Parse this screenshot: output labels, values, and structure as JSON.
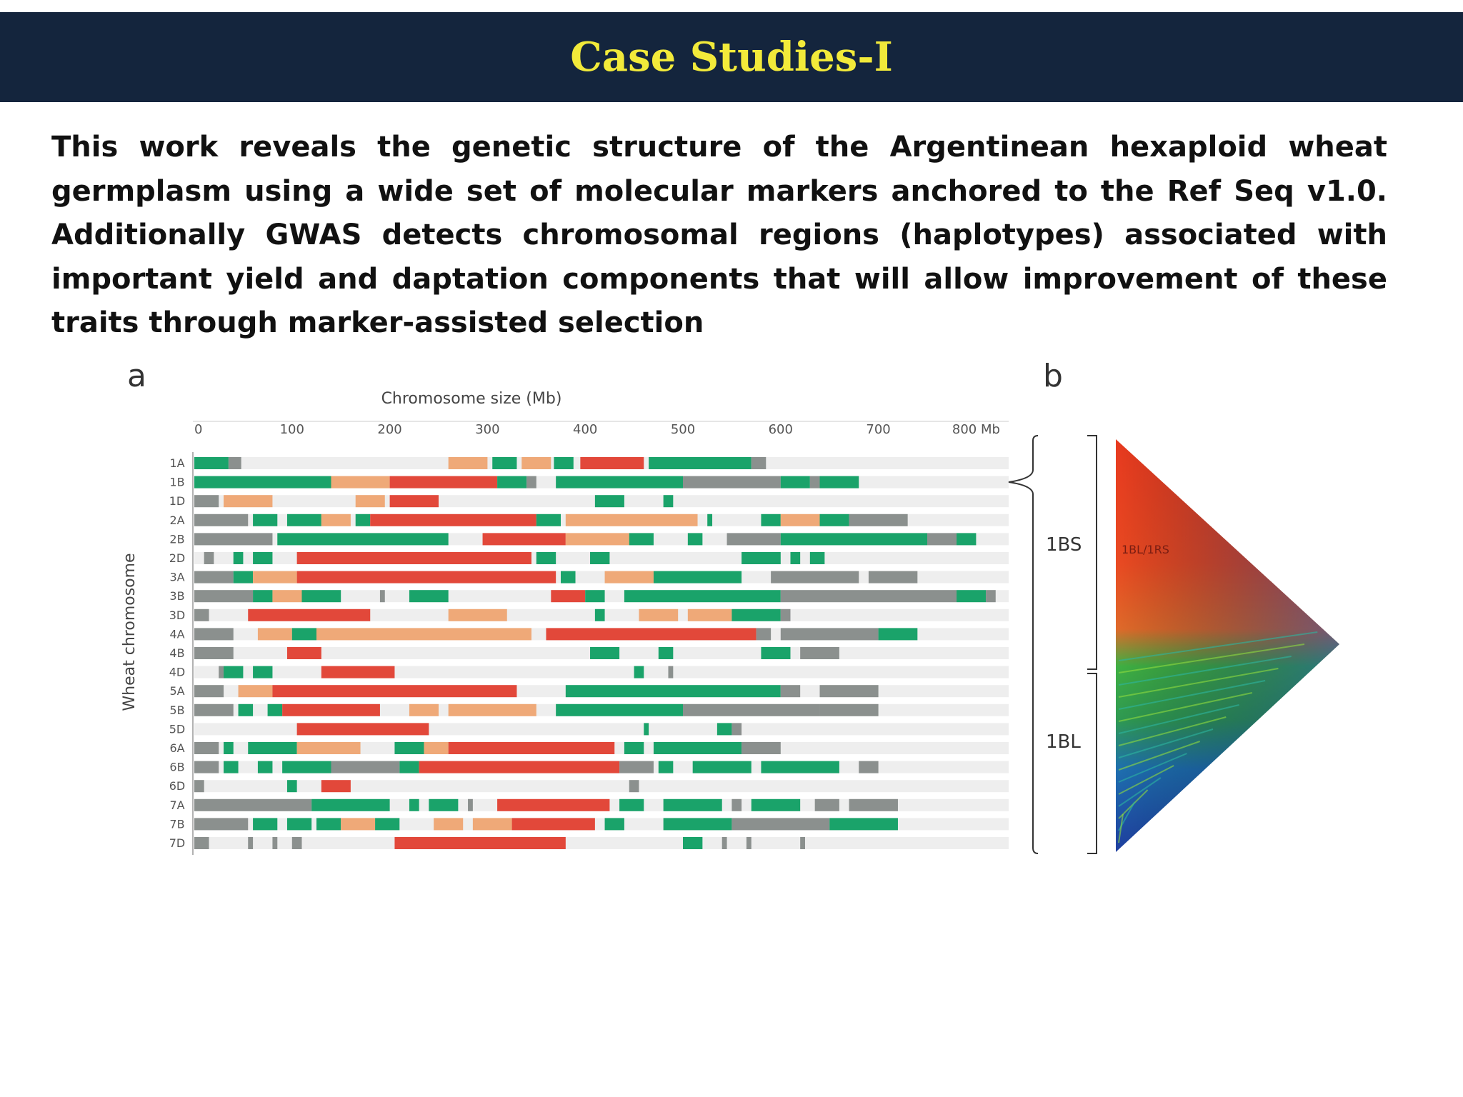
{
  "slide": {
    "title": "Case Studies-I",
    "body": "This work reveals the genetic structure of the Argentinean hexaploid wheat germplasm using a wide set of molecular markers anchored to the Ref Seq v1.0. Additionally GWAS detects chromosomal regions (haplotypes) associated with important yield and daptation components that will allow improvement of these traits through marker-assisted selection"
  },
  "figure": {
    "panel_a_label": "a",
    "panel_b_label": "b",
    "colors": {
      "green": "#1aa36a",
      "gray": "#8b908e",
      "orange": "#efa978",
      "red": "#e2483a",
      "track": "#eeeeee"
    },
    "panel_a": {
      "xlabel": "Chromosome size (Mb)",
      "ylabel": "Wheat chromosome",
      "ticks": [
        "0",
        "100",
        "200",
        "300",
        "400",
        "500",
        "600",
        "700",
        "800 Mb"
      ],
      "rows": [
        {
          "chr": "1A",
          "segs": [
            [
              0,
              35,
              "g"
            ],
            [
              35,
              48,
              "x"
            ],
            [
              260,
              300,
              "o"
            ],
            [
              305,
              330,
              "g"
            ],
            [
              335,
              365,
              "o"
            ],
            [
              368,
              388,
              "g"
            ],
            [
              395,
              460,
              "r"
            ],
            [
              465,
              570,
              "g"
            ],
            [
              570,
              585,
              "x"
            ]
          ]
        },
        {
          "chr": "1B",
          "segs": [
            [
              0,
              140,
              "g"
            ],
            [
              140,
              200,
              "o"
            ],
            [
              200,
              310,
              "r"
            ],
            [
              310,
              340,
              "g"
            ],
            [
              340,
              350,
              "x"
            ],
            [
              370,
              500,
              "g"
            ],
            [
              500,
              600,
              "x"
            ],
            [
              600,
              630,
              "g"
            ],
            [
              630,
              640,
              "x"
            ],
            [
              640,
              680,
              "g"
            ]
          ]
        },
        {
          "chr": "1D",
          "segs": [
            [
              0,
              25,
              "x"
            ],
            [
              30,
              80,
              "o"
            ],
            [
              165,
              195,
              "o"
            ],
            [
              200,
              250,
              "r"
            ],
            [
              410,
              440,
              "g"
            ],
            [
              480,
              490,
              "g"
            ]
          ]
        },
        {
          "chr": "2A",
          "segs": [
            [
              0,
              55,
              "x"
            ],
            [
              60,
              85,
              "g"
            ],
            [
              95,
              130,
              "g"
            ],
            [
              130,
              160,
              "o"
            ],
            [
              165,
              180,
              "g"
            ],
            [
              180,
              350,
              "r"
            ],
            [
              350,
              375,
              "g"
            ],
            [
              380,
              515,
              "o"
            ],
            [
              525,
              530,
              "g"
            ],
            [
              580,
              600,
              "g"
            ],
            [
              600,
              640,
              "o"
            ],
            [
              640,
              670,
              "g"
            ],
            [
              670,
              730,
              "x"
            ]
          ]
        },
        {
          "chr": "2B",
          "segs": [
            [
              0,
              80,
              "x"
            ],
            [
              85,
              260,
              "g"
            ],
            [
              295,
              380,
              "r"
            ],
            [
              380,
              445,
              "o"
            ],
            [
              445,
              470,
              "g"
            ],
            [
              505,
              520,
              "g"
            ],
            [
              545,
              600,
              "x"
            ],
            [
              600,
              750,
              "g"
            ],
            [
              750,
              780,
              "x"
            ],
            [
              780,
              800,
              "g"
            ]
          ]
        },
        {
          "chr": "2D",
          "segs": [
            [
              10,
              20,
              "x"
            ],
            [
              40,
              50,
              "g"
            ],
            [
              60,
              80,
              "g"
            ],
            [
              105,
              345,
              "r"
            ],
            [
              350,
              370,
              "g"
            ],
            [
              405,
              425,
              "g"
            ],
            [
              560,
              600,
              "g"
            ],
            [
              610,
              620,
              "g"
            ],
            [
              630,
              645,
              "g"
            ]
          ]
        },
        {
          "chr": "3A",
          "segs": [
            [
              0,
              40,
              "x"
            ],
            [
              40,
              60,
              "g"
            ],
            [
              60,
              105,
              "o"
            ],
            [
              105,
              370,
              "r"
            ],
            [
              375,
              390,
              "g"
            ],
            [
              420,
              470,
              "o"
            ],
            [
              470,
              560,
              "g"
            ],
            [
              590,
              680,
              "x"
            ],
            [
              690,
              740,
              "x"
            ]
          ]
        },
        {
          "chr": "3B",
          "segs": [
            [
              0,
              60,
              "x"
            ],
            [
              60,
              80,
              "g"
            ],
            [
              80,
              110,
              "o"
            ],
            [
              110,
              150,
              "g"
            ],
            [
              190,
              195,
              "x"
            ],
            [
              220,
              260,
              "g"
            ],
            [
              365,
              400,
              "r"
            ],
            [
              400,
              420,
              "g"
            ],
            [
              440,
              600,
              "g"
            ],
            [
              600,
              780,
              "x"
            ],
            [
              780,
              810,
              "g"
            ],
            [
              810,
              820,
              "x"
            ]
          ]
        },
        {
          "chr": "3D",
          "segs": [
            [
              0,
              15,
              "x"
            ],
            [
              55,
              180,
              "r"
            ],
            [
              260,
              320,
              "o"
            ],
            [
              410,
              420,
              "g"
            ],
            [
              455,
              495,
              "o"
            ],
            [
              505,
              550,
              "o"
            ],
            [
              550,
              600,
              "g"
            ],
            [
              600,
              610,
              "x"
            ]
          ]
        },
        {
          "chr": "4A",
          "segs": [
            [
              0,
              40,
              "x"
            ],
            [
              65,
              100,
              "o"
            ],
            [
              100,
              125,
              "g"
            ],
            [
              125,
              345,
              "o"
            ],
            [
              360,
              575,
              "r"
            ],
            [
              575,
              590,
              "x"
            ],
            [
              600,
              700,
              "x"
            ],
            [
              700,
              740,
              "g"
            ]
          ]
        },
        {
          "chr": "4B",
          "segs": [
            [
              0,
              40,
              "x"
            ],
            [
              95,
              130,
              "r"
            ],
            [
              405,
              435,
              "g"
            ],
            [
              475,
              490,
              "g"
            ],
            [
              580,
              610,
              "g"
            ],
            [
              620,
              660,
              "x"
            ]
          ]
        },
        {
          "chr": "4D",
          "segs": [
            [
              25,
              30,
              "x"
            ],
            [
              30,
              50,
              "g"
            ],
            [
              60,
              80,
              "g"
            ],
            [
              130,
              205,
              "r"
            ],
            [
              450,
              460,
              "g"
            ],
            [
              485,
              490,
              "x"
            ]
          ]
        },
        {
          "chr": "5A",
          "segs": [
            [
              0,
              30,
              "x"
            ],
            [
              45,
              80,
              "o"
            ],
            [
              80,
              330,
              "r"
            ],
            [
              380,
              600,
              "g"
            ],
            [
              600,
              620,
              "x"
            ],
            [
              640,
              700,
              "x"
            ]
          ]
        },
        {
          "chr": "5B",
          "segs": [
            [
              0,
              40,
              "x"
            ],
            [
              45,
              60,
              "g"
            ],
            [
              75,
              90,
              "g"
            ],
            [
              90,
              190,
              "r"
            ],
            [
              220,
              250,
              "o"
            ],
            [
              260,
              350,
              "o"
            ],
            [
              370,
              500,
              "g"
            ],
            [
              500,
              640,
              "x"
            ],
            [
              640,
              700,
              "x"
            ]
          ]
        },
        {
          "chr": "5D",
          "segs": [
            [
              105,
              240,
              "r"
            ],
            [
              460,
              465,
              "g"
            ],
            [
              535,
              550,
              "g"
            ],
            [
              550,
              560,
              "x"
            ]
          ]
        },
        {
          "chr": "6A",
          "segs": [
            [
              0,
              25,
              "x"
            ],
            [
              30,
              40,
              "g"
            ],
            [
              55,
              105,
              "g"
            ],
            [
              105,
              170,
              "o"
            ],
            [
              205,
              235,
              "g"
            ],
            [
              235,
              260,
              "o"
            ],
            [
              260,
              430,
              "r"
            ],
            [
              440,
              460,
              "g"
            ],
            [
              470,
              560,
              "g"
            ],
            [
              560,
              600,
              "x"
            ]
          ]
        },
        {
          "chr": "6B",
          "segs": [
            [
              0,
              25,
              "x"
            ],
            [
              30,
              45,
              "g"
            ],
            [
              65,
              80,
              "g"
            ],
            [
              90,
              140,
              "g"
            ],
            [
              140,
              210,
              "x"
            ],
            [
              210,
              230,
              "g"
            ],
            [
              230,
              435,
              "r"
            ],
            [
              435,
              470,
              "x"
            ],
            [
              475,
              490,
              "g"
            ],
            [
              510,
              570,
              "g"
            ],
            [
              580,
              660,
              "g"
            ],
            [
              680,
              700,
              "x"
            ]
          ]
        },
        {
          "chr": "6D",
          "segs": [
            [
              0,
              10,
              "x"
            ],
            [
              95,
              105,
              "g"
            ],
            [
              130,
              160,
              "r"
            ],
            [
              445,
              455,
              "x"
            ]
          ]
        },
        {
          "chr": "7A",
          "segs": [
            [
              0,
              120,
              "x"
            ],
            [
              120,
              200,
              "g"
            ],
            [
              220,
              230,
              "g"
            ],
            [
              240,
              270,
              "g"
            ],
            [
              280,
              285,
              "x"
            ],
            [
              310,
              425,
              "r"
            ],
            [
              435,
              460,
              "g"
            ],
            [
              480,
              540,
              "g"
            ],
            [
              550,
              560,
              "x"
            ],
            [
              570,
              620,
              "g"
            ],
            [
              635,
              660,
              "x"
            ],
            [
              670,
              720,
              "x"
            ]
          ]
        },
        {
          "chr": "7B",
          "segs": [
            [
              0,
              55,
              "x"
            ],
            [
              60,
              85,
              "g"
            ],
            [
              95,
              120,
              "g"
            ],
            [
              125,
              150,
              "g"
            ],
            [
              150,
              185,
              "o"
            ],
            [
              185,
              210,
              "g"
            ],
            [
              245,
              275,
              "o"
            ],
            [
              285,
              325,
              "o"
            ],
            [
              325,
              410,
              "r"
            ],
            [
              420,
              440,
              "g"
            ],
            [
              480,
              550,
              "g"
            ],
            [
              550,
              650,
              "x"
            ],
            [
              650,
              720,
              "g"
            ]
          ]
        },
        {
          "chr": "7D",
          "segs": [
            [
              0,
              15,
              "x"
            ],
            [
              55,
              60,
              "x"
            ],
            [
              80,
              85,
              "x"
            ],
            [
              100,
              110,
              "x"
            ],
            [
              205,
              380,
              "r"
            ],
            [
              500,
              520,
              "g"
            ],
            [
              540,
              545,
              "x"
            ],
            [
              565,
              570,
              "x"
            ],
            [
              620,
              625,
              "x"
            ]
          ]
        }
      ]
    },
    "panel_b": {
      "label_short_arm": "1BS",
      "label_long_arm": "1BL",
      "inset_label": "1BL/1RS"
    }
  }
}
